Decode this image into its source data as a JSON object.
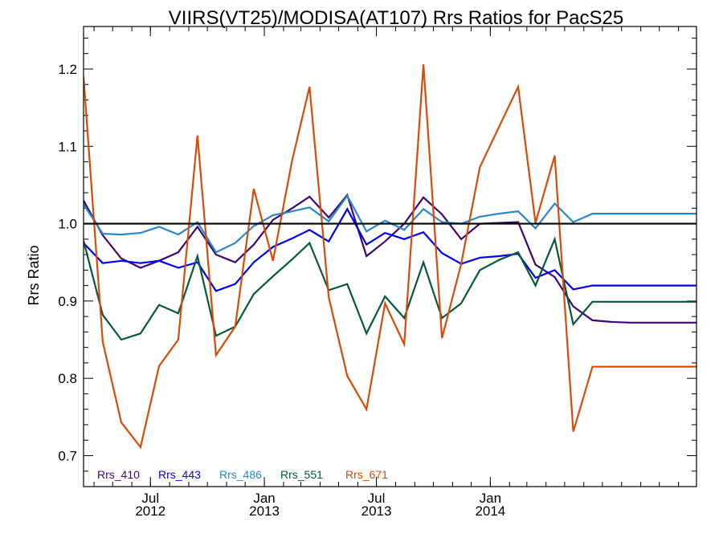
{
  "chart_data": {
    "type": "line",
    "title": "VIIRS(VT25)/MODISA(AT107)  Rrs Ratios for PacS25",
    "xlabel": "",
    "ylabel": "Rrs Ratio",
    "ylim": [
      0.66,
      1.255
    ],
    "xlim": [
      "2012-03-15",
      "2014-11-30"
    ],
    "y_ticks": [
      0.7,
      0.8,
      0.9,
      1.0,
      1.1,
      1.2
    ],
    "y_tick_labels": [
      "0.7",
      "0.8",
      "0.9",
      "1.0",
      "1.1",
      "1.2"
    ],
    "x_ticks": [
      {
        "date": "2012-07-01",
        "line1": "Jul",
        "line2": "2012"
      },
      {
        "date": "2013-01-01",
        "line1": "Jan",
        "line2": "2013"
      },
      {
        "date": "2013-07-01",
        "line1": "Jul",
        "line2": "2013"
      },
      {
        "date": "2014-01-01",
        "line1": "Jan",
        "line2": "2014"
      }
    ],
    "reference_line": 1.0,
    "grid": false,
    "legend_position": "bottom-left",
    "x": [
      "2012-03-15",
      "2012-04-15",
      "2012-05-15",
      "2012-06-15",
      "2012-07-15",
      "2012-08-15",
      "2012-09-15",
      "2012-10-15",
      "2012-11-15",
      "2012-12-15",
      "2013-01-15",
      "2013-02-15",
      "2013-03-15",
      "2013-04-15",
      "2013-05-15",
      "2013-06-15",
      "2013-07-15",
      "2013-08-15",
      "2013-09-15",
      "2013-10-15",
      "2013-11-15",
      "2013-12-15",
      "2014-01-15",
      "2014-02-15",
      "2014-03-15",
      "2014-04-15",
      "2014-05-15",
      "2014-06-15",
      "2014-07-15",
      "2014-08-15",
      "2014-09-15",
      "2014-10-15",
      "2014-11-15",
      "2014-11-30"
    ],
    "series": [
      {
        "name": "Rrs_410",
        "color": "#3c0873",
        "values": [
          1.03,
          0.985,
          0.955,
          0.943,
          0.952,
          0.963,
          0.996,
          0.96,
          0.95,
          0.973,
          1.005,
          1.02,
          1.035,
          1.008,
          1.037,
          0.958,
          0.977,
          1.0,
          1.034,
          1.012,
          0.98,
          1.0,
          1.001,
          1.002,
          0.947,
          0.931,
          0.893,
          0.875,
          0.873,
          0.872,
          0.872,
          0.872,
          0.872,
          0.872
        ]
      },
      {
        "name": "Rrs_443",
        "color": "#0000f0",
        "values": [
          0.975,
          0.949,
          0.952,
          0.949,
          0.952,
          0.943,
          0.95,
          0.913,
          0.922,
          0.95,
          0.97,
          0.981,
          0.992,
          0.977,
          1.019,
          0.973,
          0.988,
          0.98,
          0.989,
          0.962,
          0.948,
          0.956,
          0.958,
          0.961,
          0.93,
          0.94,
          0.915,
          0.92,
          0.92,
          0.92,
          0.92,
          0.92,
          0.92,
          0.92
        ]
      },
      {
        "name": "Rrs_486",
        "color": "#2a86c7",
        "values": [
          1.025,
          0.987,
          0.986,
          0.988,
          0.996,
          0.986,
          1.002,
          0.963,
          0.975,
          0.997,
          1.011,
          1.016,
          1.021,
          1.003,
          1.036,
          0.99,
          1.004,
          0.992,
          1.019,
          1.002,
          1.0,
          1.009,
          1.013,
          1.016,
          0.994,
          1.026,
          1.002,
          1.013,
          1.013,
          1.013,
          1.013,
          1.013,
          1.013,
          1.013
        ]
      },
      {
        "name": "Rrs_551",
        "color": "#06583a",
        "values": [
          0.978,
          0.882,
          0.85,
          0.858,
          0.895,
          0.884,
          0.958,
          0.855,
          0.867,
          0.909,
          0.932,
          0.954,
          0.975,
          0.914,
          0.922,
          0.858,
          0.906,
          0.878,
          0.95,
          0.878,
          0.897,
          0.94,
          0.953,
          0.963,
          0.92,
          0.98,
          0.87,
          0.899,
          0.899,
          0.899,
          0.899,
          0.899,
          0.899,
          0.899
        ]
      },
      {
        "name": "Rrs_671",
        "color": "#d84a05",
        "values": [
          1.19,
          0.847,
          0.743,
          0.711,
          0.816,
          0.85,
          1.114,
          0.83,
          0.867,
          1.045,
          0.952,
          1.082,
          1.177,
          0.905,
          0.803,
          0.76,
          0.897,
          0.844,
          1.206,
          0.852,
          0.948,
          1.073,
          1.125,
          1.177,
          1.001,
          1.088,
          0.731,
          0.815,
          0.815,
          0.815,
          0.815,
          0.815,
          0.815,
          0.815
        ]
      }
    ]
  }
}
